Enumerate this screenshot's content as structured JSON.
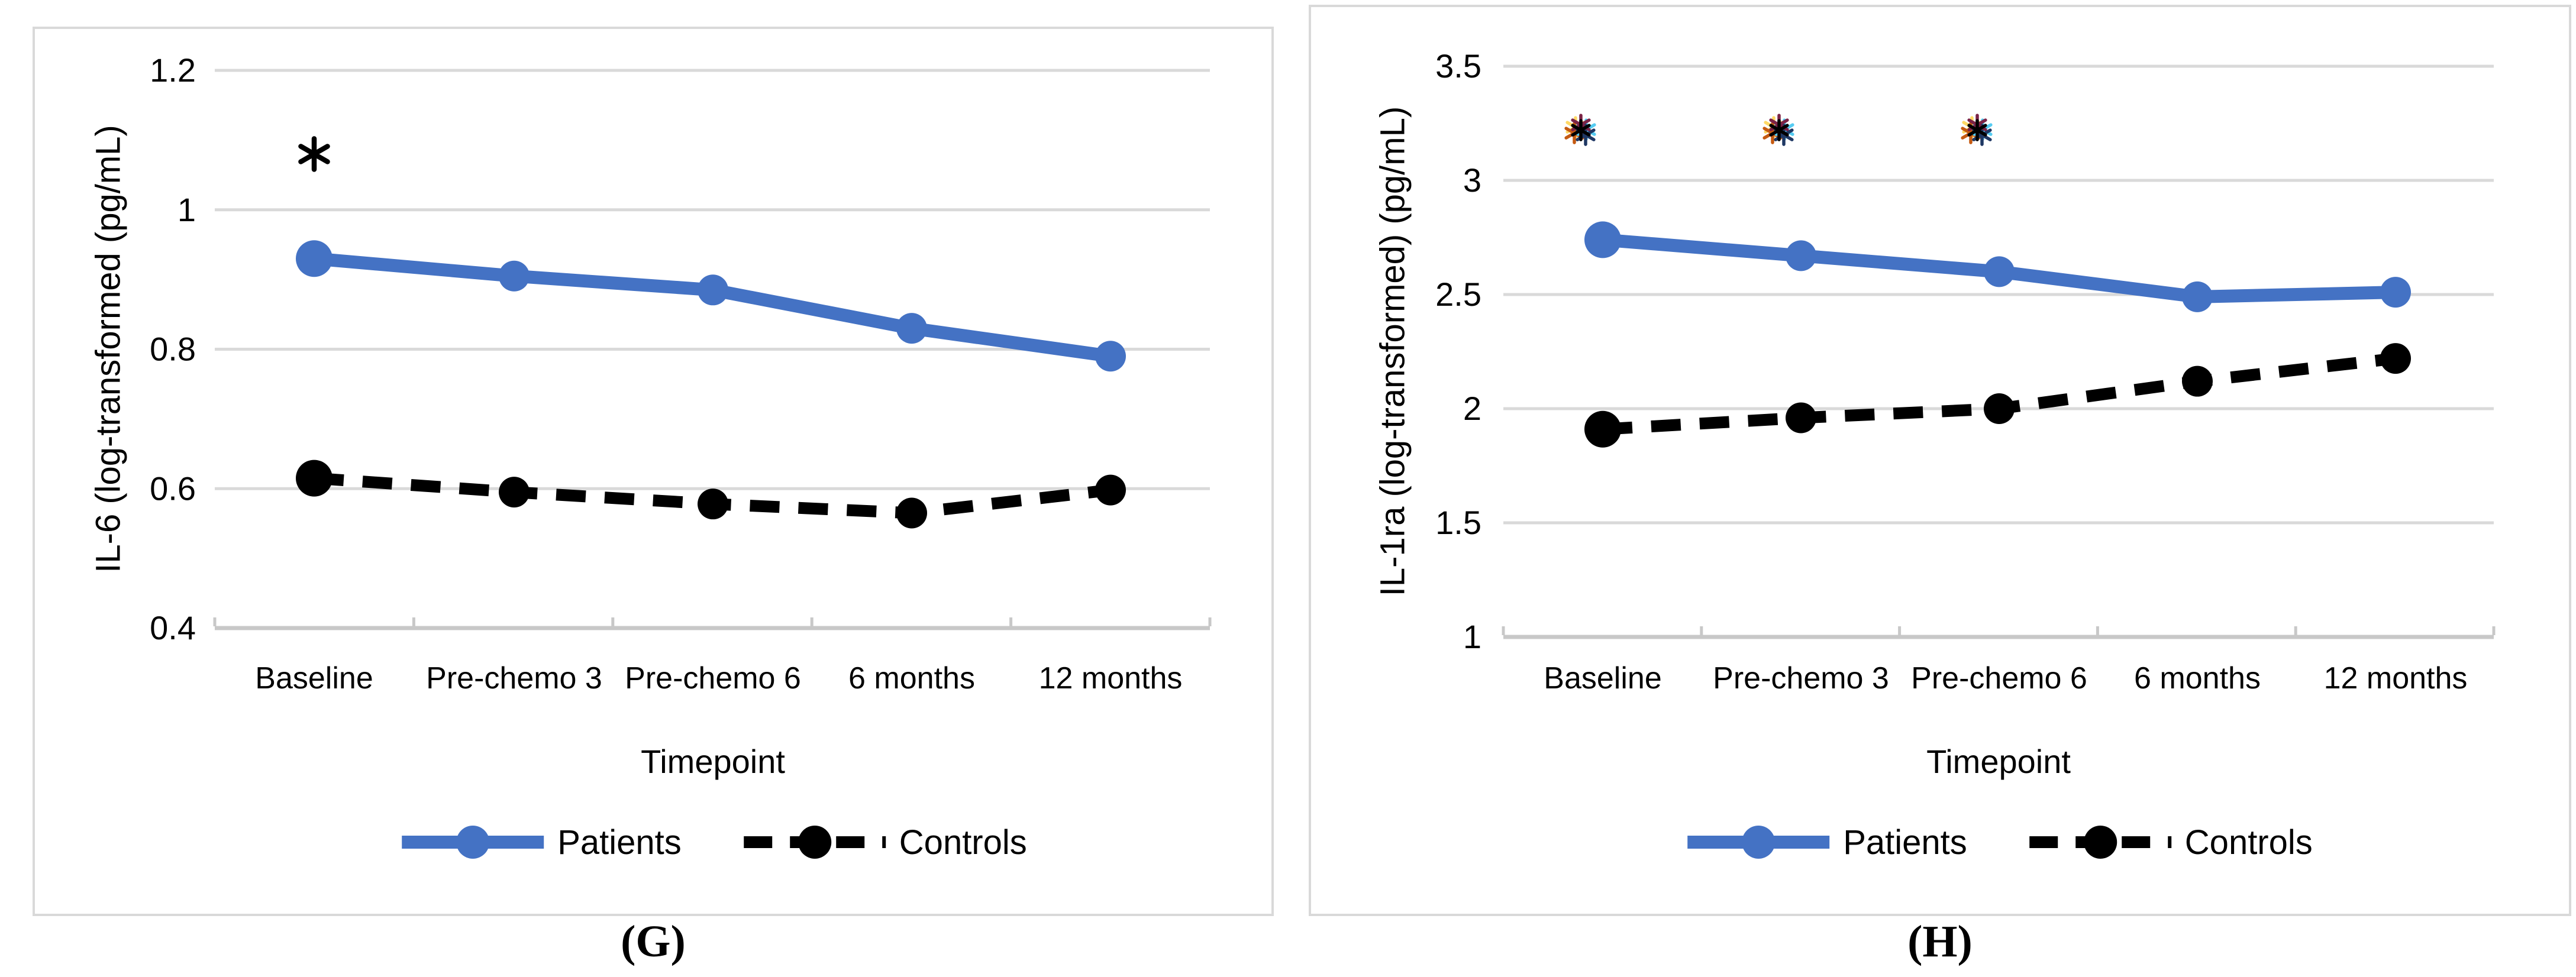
{
  "figure": {
    "panels": [
      {
        "id": "G",
        "label": "(G)"
      },
      {
        "id": "H",
        "label": "(H)"
      }
    ]
  },
  "colors": {
    "patients_blue": "#4472C4",
    "controls_black": "#000000",
    "gridline": "#D9D9D9",
    "axis_line": "#C8C8C8",
    "panel_border": "#D9D9D9",
    "text": "#000000"
  },
  "chart_data": [
    {
      "type": "line",
      "panel": "G",
      "title": "",
      "xlabel": "Timepoint",
      "ylabel": "IL-6 (log-transformed (pg/mL)",
      "categories": [
        "Baseline",
        "Pre-chemo 3",
        "Pre-chemo 6",
        "6 months",
        "12 months"
      ],
      "ylim": [
        0.4,
        1.2
      ],
      "y_ticks": [
        1.2,
        1,
        0.8,
        0.6,
        0.4
      ],
      "y_tick_labels": [
        "1.2",
        "1",
        "0.8",
        "0.6",
        "0.4"
      ],
      "grid": true,
      "legend_position": "bottom",
      "series": [
        {
          "name": "Patients",
          "color": "#4472C4",
          "line_style": "solid",
          "marker": "circle",
          "values": [
            0.93,
            0.905,
            0.885,
            0.83,
            0.79
          ]
        },
        {
          "name": "Controls",
          "color": "#000000",
          "line_style": "dashed",
          "marker": "circle",
          "values": [
            0.615,
            0.595,
            0.578,
            0.565,
            0.598
          ]
        }
      ],
      "annotations": [
        {
          "type": "significance-asterisk",
          "category_index": 0,
          "y": 1.08,
          "dx": 0,
          "colors": [
            "#000000"
          ]
        }
      ]
    },
    {
      "type": "line",
      "panel": "H",
      "title": "",
      "xlabel": "Timepoint",
      "ylabel": "IL-1ra (log-transformed) (pg/mL)",
      "categories": [
        "Baseline",
        "Pre-chemo 3",
        "Pre-chemo 6",
        "6 months",
        "12 months"
      ],
      "ylim": [
        1,
        3.5
      ],
      "y_ticks": [
        3.5,
        3,
        2.5,
        2,
        1.5,
        1
      ],
      "y_tick_labels": [
        "3.5",
        "3",
        "2.5",
        "2",
        "1.5",
        "1"
      ],
      "grid": true,
      "legend_position": "bottom",
      "series": [
        {
          "name": "Patients",
          "color": "#4472C4",
          "line_style": "solid",
          "marker": "circle",
          "values": [
            2.74,
            2.67,
            2.6,
            2.49,
            2.51
          ]
        },
        {
          "name": "Controls",
          "color": "#000000",
          "line_style": "dashed",
          "marker": "circle",
          "values": [
            1.91,
            1.96,
            2,
            2.12,
            2.22
          ]
        }
      ],
      "annotations": [
        {
          "type": "significance-asterisk",
          "category_index": 0,
          "y": 3.22,
          "dx": -37,
          "colors": [
            "#FFD966",
            "#C55A11",
            "#56CCF2",
            "#1F3864",
            "#7B2346",
            "#000000"
          ]
        },
        {
          "type": "significance-asterisk",
          "category_index": 1,
          "y": 3.22,
          "dx": -37,
          "colors": [
            "#FFD966",
            "#C55A11",
            "#56CCF2",
            "#1F3864",
            "#7B2346",
            "#000000"
          ]
        },
        {
          "type": "significance-asterisk",
          "category_index": 2,
          "y": 3.22,
          "dx": -37,
          "colors": [
            "#FFD966",
            "#C55A11",
            "#56CCF2",
            "#1F3864",
            "#7B2346",
            "#000000"
          ]
        }
      ]
    }
  ]
}
